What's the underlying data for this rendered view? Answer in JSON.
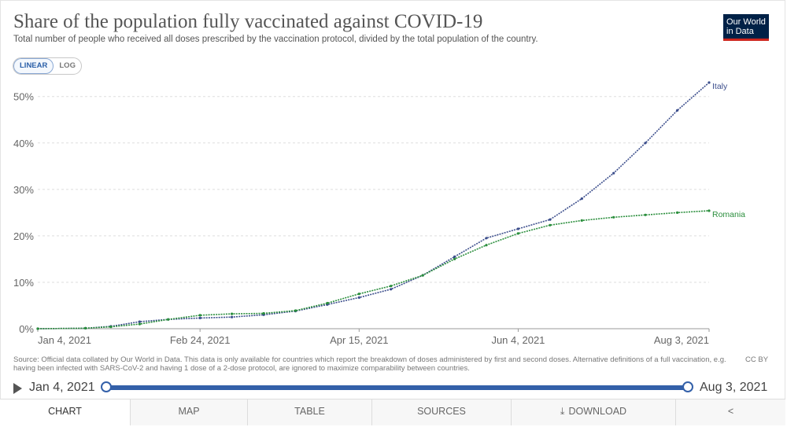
{
  "title": "Share of the population fully vaccinated against COVID-19",
  "subtitle": "Total number of people who received all doses prescribed by the vaccination protocol, divided by the total population of the country.",
  "logo": {
    "line1": "Our World",
    "line2": "in Data"
  },
  "scale_toggle": {
    "linear": "LINEAR",
    "log": "LOG",
    "selected": "LINEAR"
  },
  "chart_data": {
    "type": "line",
    "title": "Share of the population fully vaccinated against COVID-19",
    "xlabel": "",
    "ylabel": "",
    "x_ticks": [
      "Jan 4, 2021",
      "Feb 24, 2021",
      "Apr 15, 2021",
      "Jun 4, 2021",
      "Aug 3, 2021"
    ],
    "y_ticks": [
      "0%",
      "10%",
      "20%",
      "30%",
      "40%",
      "50%"
    ],
    "ylim": [
      0,
      53
    ],
    "xlim": [
      "2021-01-04",
      "2021-08-03"
    ],
    "grid": "horizontal dashed",
    "series": [
      {
        "name": "Italy",
        "color": "#3c4e8c",
        "points": [
          [
            "2021-01-04",
            0
          ],
          [
            "2021-01-19",
            0.1
          ],
          [
            "2021-01-27",
            0.5
          ],
          [
            "2021-02-05",
            1.5
          ],
          [
            "2021-02-14",
            2.0
          ],
          [
            "2021-02-24",
            2.3
          ],
          [
            "2021-03-06",
            2.5
          ],
          [
            "2021-03-16",
            3.0
          ],
          [
            "2021-03-26",
            3.8
          ],
          [
            "2021-04-05",
            5.2
          ],
          [
            "2021-04-15",
            6.7
          ],
          [
            "2021-04-25",
            8.5
          ],
          [
            "2021-05-05",
            11.5
          ],
          [
            "2021-05-15",
            15.5
          ],
          [
            "2021-05-25",
            19.5
          ],
          [
            "2021-06-04",
            21.5
          ],
          [
            "2021-06-14",
            23.5
          ],
          [
            "2021-06-24",
            28.0
          ],
          [
            "2021-07-04",
            33.5
          ],
          [
            "2021-07-14",
            40.0
          ],
          [
            "2021-07-24",
            47.0
          ],
          [
            "2021-08-03",
            53.0
          ]
        ]
      },
      {
        "name": "Romania",
        "color": "#2a8e3c",
        "points": [
          [
            "2021-01-04",
            0
          ],
          [
            "2021-01-19",
            0.1
          ],
          [
            "2021-01-27",
            0.4
          ],
          [
            "2021-02-05",
            1.0
          ],
          [
            "2021-02-14",
            2.0
          ],
          [
            "2021-02-24",
            2.9
          ],
          [
            "2021-03-06",
            3.2
          ],
          [
            "2021-03-16",
            3.3
          ],
          [
            "2021-03-26",
            3.9
          ],
          [
            "2021-04-05",
            5.5
          ],
          [
            "2021-04-15",
            7.5
          ],
          [
            "2021-04-25",
            9.2
          ],
          [
            "2021-05-05",
            11.5
          ],
          [
            "2021-05-15",
            15.0
          ],
          [
            "2021-05-25",
            18.0
          ],
          [
            "2021-06-04",
            20.5
          ],
          [
            "2021-06-14",
            22.3
          ],
          [
            "2021-06-24",
            23.3
          ],
          [
            "2021-07-04",
            24.0
          ],
          [
            "2021-07-14",
            24.5
          ],
          [
            "2021-07-24",
            25.0
          ],
          [
            "2021-08-03",
            25.4
          ]
        ]
      }
    ]
  },
  "source_text": "Source: Official data collated by Our World in Data. This data is only available for countries which report the breakdown of doses administered by first and second doses. Alternative definitions of a full vaccination, e.g. having been infected with SARS-CoV-2 and having 1 dose of a 2-dose protocol, are ignored to maximize comparability between countries.",
  "license": "CC BY",
  "timeline": {
    "start": "Jan 4, 2021",
    "end": "Aug 3, 2021"
  },
  "tabs": {
    "chart": "CHART",
    "map": "MAP",
    "table": "TABLE",
    "sources": "SOURCES",
    "download": "DOWNLOAD",
    "active": "CHART"
  }
}
